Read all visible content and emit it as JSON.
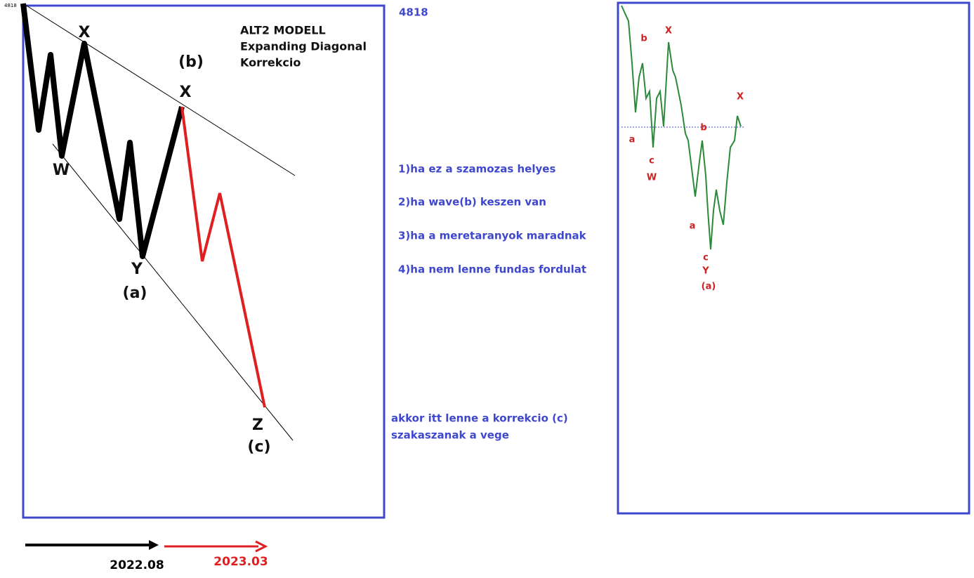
{
  "left_panel": {
    "corner_price": "4818",
    "title": [
      "ALT2 MODELL",
      "Expanding Diagonal",
      "Korrekcio"
    ],
    "wave_labels": [
      "X",
      "W",
      "(b)",
      "X",
      "Y",
      "(a)",
      "Z",
      "(c)"
    ]
  },
  "price_level": "4818",
  "notes": [
    "1)ha ez a szamozas helyes",
    "2)ha wave(b) keszen van",
    "3)ha a meretaranyok maradnak",
    "4)ha nem lenne fundas fordulat"
  ],
  "conclusion": [
    "akkor itt lenne a korrekcio (c)",
    "szakaszanak a vege"
  ],
  "timeline": [
    "2022.08",
    "2023.03"
  ],
  "right_panel": {
    "wave_labels": [
      "b",
      "X",
      "a",
      "c",
      "W",
      "b",
      "X",
      "a",
      "c",
      "Y",
      "(a)"
    ]
  }
}
